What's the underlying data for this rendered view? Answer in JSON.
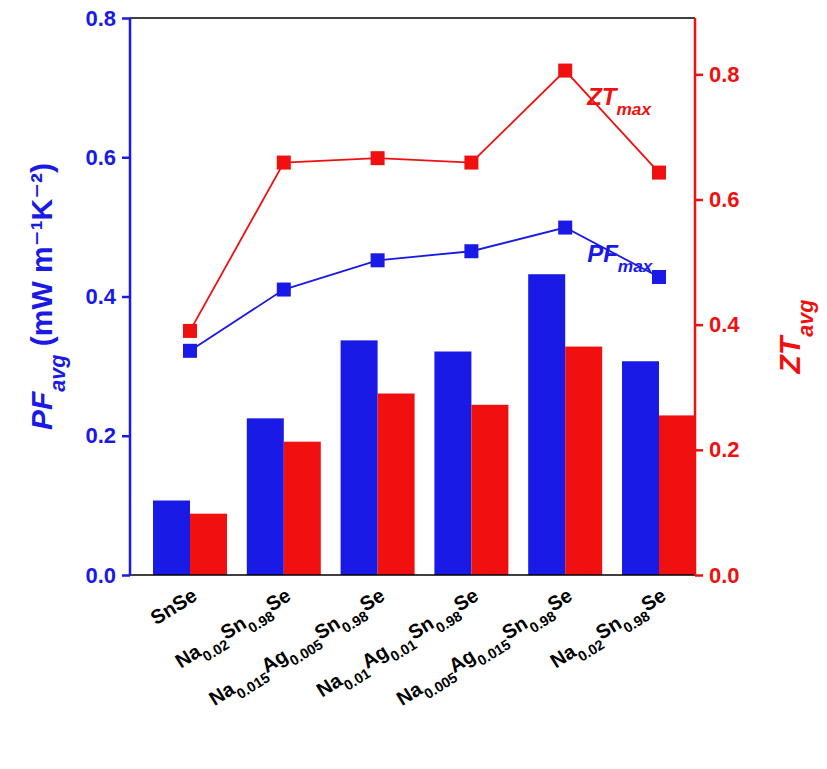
{
  "chart_data": {
    "type": "bar",
    "categories": [
      "SnSe",
      "Na0.02Sn0.98Se",
      "Na0.015Ag0.005Sn0.98Se",
      "Na0.01Ag0.01Sn0.98Se",
      "Na0.005Ag0.015Sn0.98Se",
      "Na0.02Sn0.98Se"
    ],
    "y_label": "PFavg (mW m⁻¹K⁻²)",
    "y2_label": "ZTavg",
    "ylim": [
      0,
      0.8
    ],
    "yticks": [
      {
        "value": 0,
        "label": "0.0"
      },
      0.2,
      0.4,
      0.6,
      0.8
    ],
    "y2lim": [
      0,
      0.89
    ],
    "y2ticks": [
      {
        "value": 0,
        "label": "0.0"
      },
      0.2,
      0.4,
      0.6,
      0.8
    ],
    "series": [
      {
        "type": "bar",
        "color": "#1a1ae6",
        "values": [
          0.107,
          0.225,
          0.337,
          0.321,
          0.432,
          0.307
        ]
      },
      {
        "type": "bar",
        "color": "#f01010",
        "axis": "y2",
        "values": [
          0.098,
          0.213,
          0.29,
          0.272,
          0.365,
          0.255
        ]
      },
      {
        "type": "line",
        "name": "PFmax",
        "color": "#1a1ae6",
        "marker": "square",
        "values": [
          0.322,
          0.41,
          0.452,
          0.465,
          0.499,
          0.428
        ]
      },
      {
        "type": "line",
        "name": "ZTmax",
        "color": "#f01010",
        "marker": "square",
        "axis": "y2",
        "values": [
          0.39,
          0.659,
          0.666,
          0.659,
          0.806,
          0.643
        ]
      }
    ]
  }
}
